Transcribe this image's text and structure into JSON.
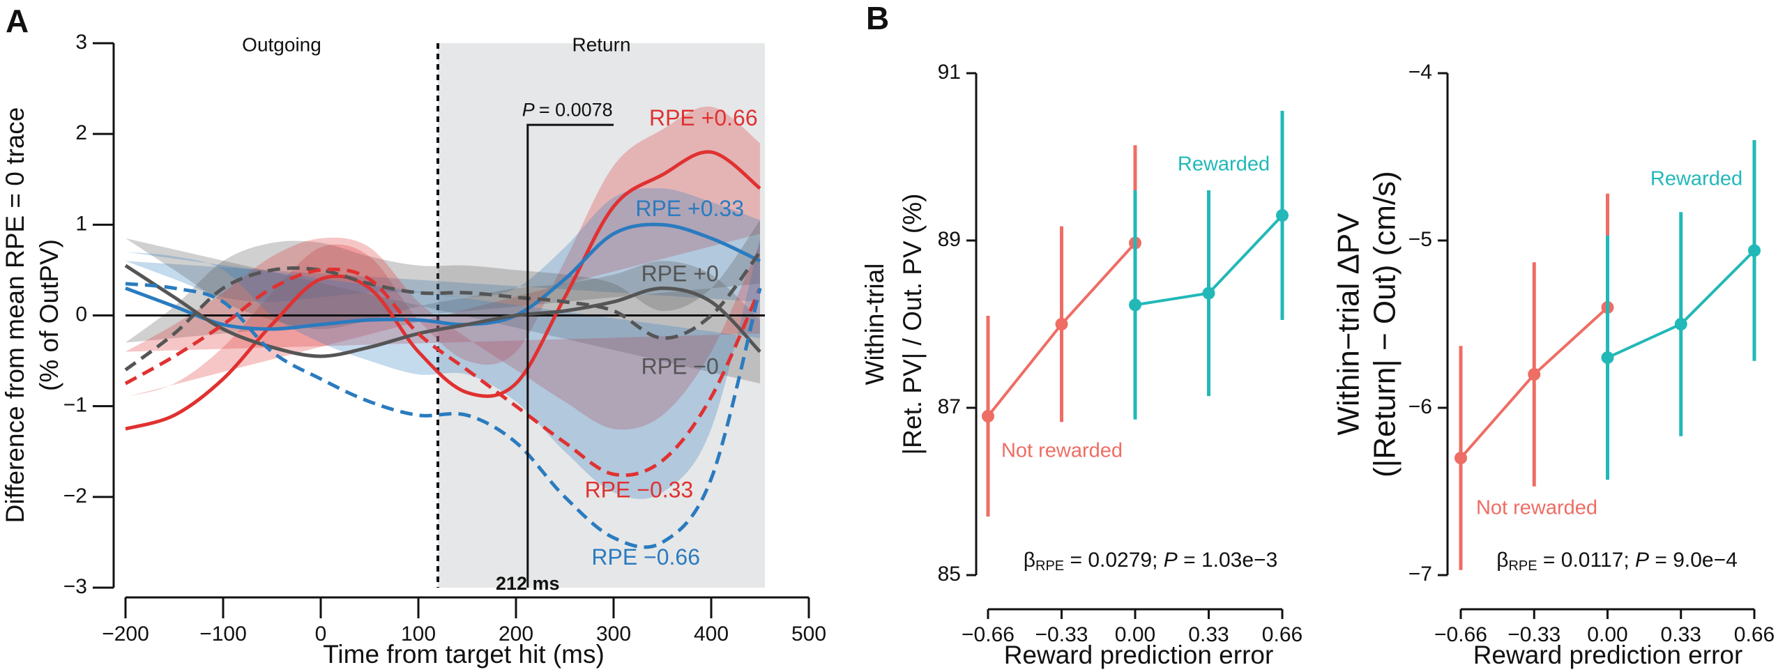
{
  "chart_data": [
    {
      "type": "line",
      "panel_label": "A",
      "xlabel": "Time from target hit (ms)",
      "ylabel": [
        "Difference from mean RPE = 0 trace",
        "(% of OutPV)"
      ],
      "xlim": [
        -200,
        500
      ],
      "ylim": [
        -3,
        3
      ],
      "xticks": [
        {
          "value": -200,
          "label": "−200"
        },
        {
          "value": -100,
          "label": "−100"
        },
        0,
        100,
        200,
        300,
        400,
        500
      ],
      "yticks": [
        {
          "value": -3,
          "label": "−3"
        },
        {
          "value": -2,
          "label": "−2"
        },
        {
          "value": -1,
          "label": "−1"
        },
        0,
        1,
        2,
        3
      ],
      "regions": [
        {
          "label": "Outgoing",
          "range": [
            -200,
            120
          ]
        },
        {
          "label": "Return",
          "range": [
            120,
            455
          ],
          "color": "#e6e7e8"
        }
      ],
      "divider": 120,
      "marker": {
        "x": 212,
        "label": "212 ms",
        "p_symbol": "P",
        "p_text": "= 0.0078"
      },
      "x": [
        -200,
        -150,
        -100,
        -50,
        0,
        50,
        100,
        150,
        200,
        250,
        300,
        350,
        400,
        450
      ],
      "series": [
        {
          "name": "RPE +0.66",
          "color": "#e03131",
          "dash": false,
          "values": [
            -1.25,
            -1.1,
            -0.7,
            -0.1,
            0.4,
            0.3,
            -0.4,
            -0.85,
            -0.75,
            0.2,
            1.2,
            1.55,
            1.8,
            1.4
          ],
          "errors": [
            0.35,
            0.35,
            0.35,
            0.35,
            0.35,
            0.35,
            0.35,
            0.35,
            0.35,
            0.4,
            0.45,
            0.5,
            0.5,
            0.5
          ]
        },
        {
          "name": "RPE +0.33",
          "color": "#2a7bbf",
          "dash": false,
          "values": [
            0.3,
            0.1,
            -0.1,
            -0.15,
            -0.1,
            -0.05,
            -0.05,
            -0.1,
            0.0,
            0.4,
            0.9,
            1.0,
            0.85,
            0.6
          ],
          "errors": [
            0.3,
            0.3,
            0.3,
            0.3,
            0.3,
            0.3,
            0.3,
            0.3,
            0.3,
            0.35,
            0.4,
            0.4,
            0.4,
            0.45
          ]
        },
        {
          "name": "RPE +0",
          "color": "#555555",
          "dash": false,
          "values": [
            0.55,
            0.2,
            -0.15,
            -0.35,
            -0.45,
            -0.35,
            -0.2,
            -0.1,
            0.0,
            0.05,
            0.15,
            0.3,
            0.15,
            -0.4
          ],
          "errors": [
            0.3,
            0.3,
            0.3,
            0.3,
            0.3,
            0.3,
            0.3,
            0.3,
            0.3,
            0.3,
            0.3,
            0.3,
            0.3,
            0.35
          ]
        },
        {
          "name": "RPE −0",
          "color": "#555555",
          "dash": true,
          "values": [
            -0.6,
            -0.2,
            0.3,
            0.5,
            0.5,
            0.35,
            0.25,
            0.25,
            0.2,
            0.15,
            0.05,
            -0.25,
            0.0,
            0.7
          ],
          "errors": [
            0.3,
            0.3,
            0.3,
            0.3,
            0.3,
            0.3,
            0.3,
            0.3,
            0.3,
            0.3,
            0.3,
            0.3,
            0.3,
            0.35
          ]
        },
        {
          "name": "RPE −0.33",
          "color": "#e03131",
          "dash": true,
          "values": [
            -0.75,
            -0.45,
            -0.1,
            0.3,
            0.5,
            0.4,
            -0.2,
            -0.6,
            -1.0,
            -1.4,
            -1.75,
            -1.6,
            -0.9,
            0.3
          ],
          "errors": [
            0.35,
            0.35,
            0.35,
            0.35,
            0.35,
            0.35,
            0.35,
            0.35,
            0.4,
            0.45,
            0.5,
            0.5,
            0.5,
            0.5
          ]
        },
        {
          "name": "RPE −0.66",
          "color": "#2a7bbf",
          "dash": true,
          "values": [
            0.35,
            0.3,
            0.15,
            -0.4,
            -0.7,
            -0.95,
            -1.1,
            -1.1,
            -1.4,
            -2.0,
            -2.45,
            -2.5,
            -1.8,
            0.3
          ],
          "errors": [
            0.35,
            0.35,
            0.35,
            0.4,
            0.4,
            0.45,
            0.45,
            0.45,
            0.45,
            0.5,
            0.5,
            0.55,
            0.55,
            0.55
          ]
        }
      ]
    },
    {
      "type": "errorbar",
      "panel_label": "B",
      "xlabel": "Reward prediction error",
      "ylabel": [
        "Within-trial",
        "|Ret. PV| / Out. PV (%)"
      ],
      "xlim": [
        -0.66,
        0.66
      ],
      "ylim": [
        85,
        91
      ],
      "xticks": [
        {
          "value": -0.66,
          "label": "−0.66"
        },
        {
          "value": -0.33,
          "label": "−0.33"
        },
        {
          "value": 0,
          "label": "0.00"
        },
        0.33,
        0.66
      ],
      "yticks": [
        85,
        87,
        89,
        91
      ],
      "stat": {
        "beta": "β",
        "beta_sub": "RPE",
        "beta_text": " = 0.0279; ",
        "p_symbol": "P",
        "p_text": " = 1.03e−3"
      },
      "series": [
        {
          "name": "Not rewarded",
          "color": "#ee6d64",
          "x": [
            -0.66,
            -0.33,
            0
          ],
          "values": [
            86.9,
            88.0,
            88.97
          ],
          "errors": [
            1.2,
            1.17,
            1.17
          ]
        },
        {
          "name": "Rewarded",
          "color": "#22b8b8",
          "x": [
            0,
            0.33,
            0.66
          ],
          "values": [
            88.23,
            88.37,
            89.3
          ],
          "errors": [
            1.37,
            1.23,
            1.25
          ]
        }
      ]
    },
    {
      "type": "errorbar",
      "xlabel": "Reward prediction error",
      "ylabel": [
        "Within−trial ΔPV",
        "(|Return| − Out) (cm/s)"
      ],
      "xlim": [
        -0.66,
        0.66
      ],
      "ylim": [
        -7,
        -4
      ],
      "xticks": [
        {
          "value": -0.66,
          "label": "−0.66"
        },
        {
          "value": -0.33,
          "label": "−0.33"
        },
        {
          "value": 0,
          "label": "0.00"
        },
        0.33,
        0.66
      ],
      "yticks": [
        {
          "value": -7,
          "label": "−7"
        },
        {
          "value": -6,
          "label": "−6"
        },
        {
          "value": -5,
          "label": "−5"
        },
        {
          "value": -4,
          "label": "−4"
        }
      ],
      "stat": {
        "beta": "β",
        "beta_sub": "RPE",
        "beta_text": " = 0.0117; ",
        "p_symbol": "P",
        "p_text": " = 9.0e−4"
      },
      "series": [
        {
          "name": "Not rewarded",
          "color": "#ee6d64",
          "x": [
            -0.66,
            -0.33,
            0
          ],
          "values": [
            -6.3,
            -5.8,
            -5.4
          ],
          "errors": [
            0.67,
            0.67,
            0.68
          ]
        },
        {
          "name": "Rewarded",
          "color": "#22b8b8",
          "x": [
            0,
            0.33,
            0.66
          ],
          "values": [
            -5.7,
            -5.5,
            -5.06
          ],
          "errors": [
            0.73,
            0.67,
            0.66
          ]
        }
      ]
    }
  ]
}
